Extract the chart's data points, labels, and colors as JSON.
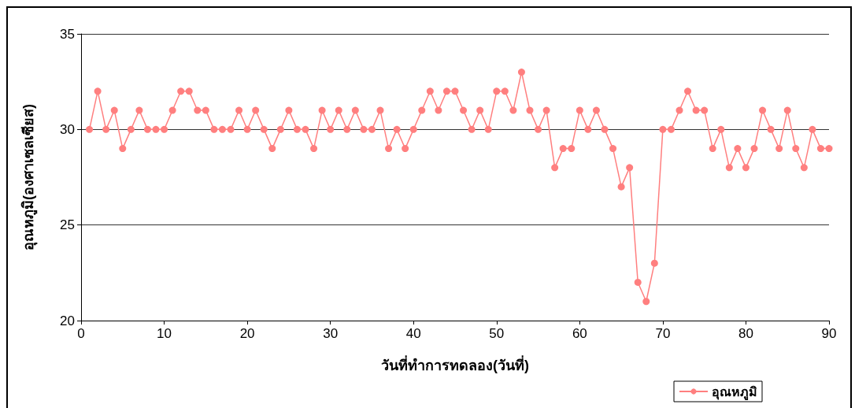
{
  "chart_data": {
    "type": "line",
    "xlabel": "วันที่ทำการทดลอง(วันที่)",
    "ylabel": "อุณหภูมิ(องศาเซลเซียส)",
    "x": [
      1,
      2,
      3,
      4,
      5,
      6,
      7,
      8,
      9,
      10,
      11,
      12,
      13,
      14,
      15,
      16,
      17,
      18,
      19,
      20,
      21,
      22,
      23,
      24,
      25,
      26,
      27,
      28,
      29,
      30,
      31,
      32,
      33,
      34,
      35,
      36,
      37,
      38,
      39,
      40,
      41,
      42,
      43,
      44,
      45,
      46,
      47,
      48,
      49,
      50,
      51,
      52,
      53,
      54,
      55,
      56,
      57,
      58,
      59,
      60,
      61,
      62,
      63,
      64,
      65,
      66,
      67,
      68,
      69,
      70,
      71,
      72,
      73,
      74,
      75,
      76,
      77,
      78,
      79,
      80,
      81,
      82,
      83,
      84,
      85,
      86,
      87,
      88,
      89,
      90
    ],
    "series": [
      {
        "name": "อุณหภูมิ",
        "color": "#ff7f7f",
        "values": [
          30,
          32,
          30,
          31,
          29,
          30,
          31,
          30,
          30,
          30,
          31,
          32,
          32,
          31,
          31,
          30,
          30,
          30,
          31,
          30,
          31,
          30,
          29,
          30,
          31,
          30,
          30,
          29,
          31,
          30,
          31,
          30,
          31,
          30,
          30,
          31,
          29,
          30,
          29,
          30,
          31,
          32,
          31,
          32,
          32,
          31,
          30,
          31,
          30,
          32,
          32,
          31,
          33,
          31,
          30,
          31,
          28,
          29,
          29,
          31,
          30,
          31,
          30,
          29,
          27,
          28,
          22,
          21,
          23,
          30,
          30,
          31,
          32,
          31,
          31,
          29,
          30,
          28,
          29,
          28,
          29,
          31,
          30,
          29,
          31,
          29,
          28,
          30,
          29,
          29
        ]
      }
    ],
    "xlim": [
      0,
      90
    ],
    "xticks": [
      0,
      10,
      20,
      30,
      40,
      50,
      60,
      70,
      80,
      90
    ],
    "ylim": [
      20,
      35
    ],
    "yticks": [
      20,
      25,
      30,
      35
    ],
    "grid": "y",
    "legend": "bottom right",
    "marker": "circle",
    "line_style": "solid"
  }
}
